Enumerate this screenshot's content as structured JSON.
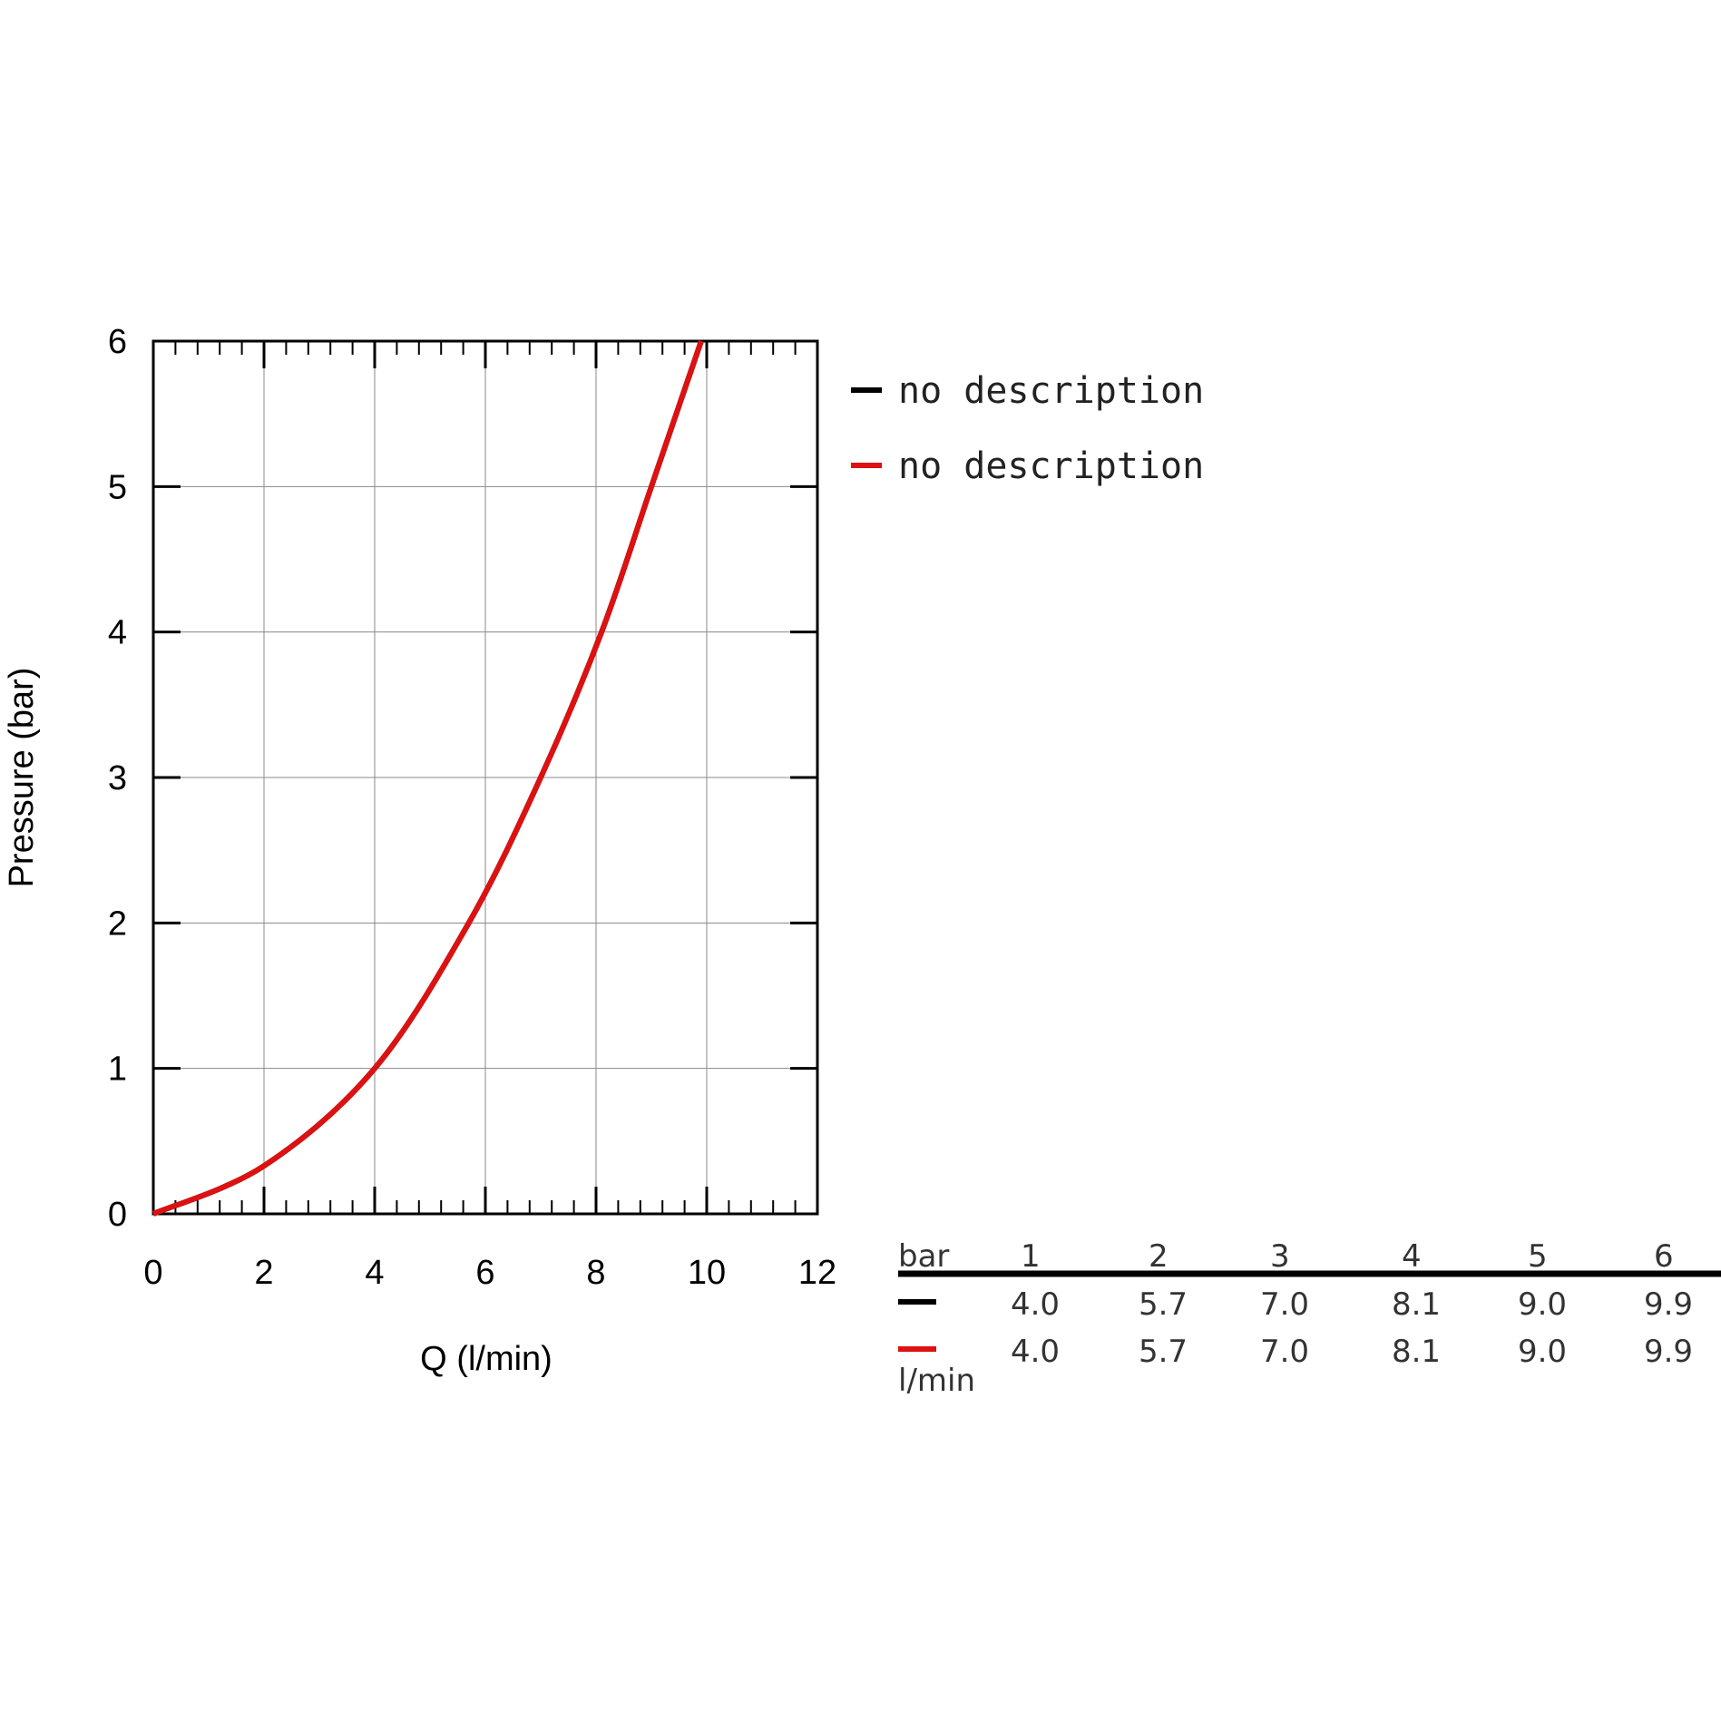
{
  "chart_data": {
    "type": "line",
    "x_label": "Q (l/min)",
    "y_label": "Pressure (bar)",
    "x": [
      0,
      2,
      4.0,
      5.7,
      7.0,
      8.1,
      9.0,
      9.9
    ],
    "series": [
      {
        "name": "no description",
        "color": "#000000",
        "values": [
          0,
          0.33,
          1,
          2,
          3,
          4,
          5,
          6
        ]
      },
      {
        "name": "no description",
        "color": "#dd1111",
        "values": [
          0,
          0.33,
          1,
          2,
          3,
          4,
          5,
          6
        ]
      }
    ],
    "xlim": [
      0,
      12
    ],
    "xticks": [
      0,
      2,
      4,
      6,
      8,
      10,
      12
    ],
    "ylim": [
      0,
      6
    ],
    "yticks": [
      0,
      1,
      2,
      3,
      4,
      5,
      6
    ],
    "grid": true
  },
  "table": {
    "header_label": "bar",
    "columns": [
      "1",
      "2",
      "3",
      "4",
      "5",
      "6"
    ],
    "rows": [
      {
        "color": "#000000",
        "values": [
          "4.0",
          "5.7",
          "7.0",
          "8.1",
          "9.0",
          "9.9"
        ]
      },
      {
        "color": "#dd1111",
        "values": [
          "4.0",
          "5.7",
          "7.0",
          "8.1",
          "9.0",
          "9.9"
        ]
      }
    ],
    "unit": "l/min"
  }
}
